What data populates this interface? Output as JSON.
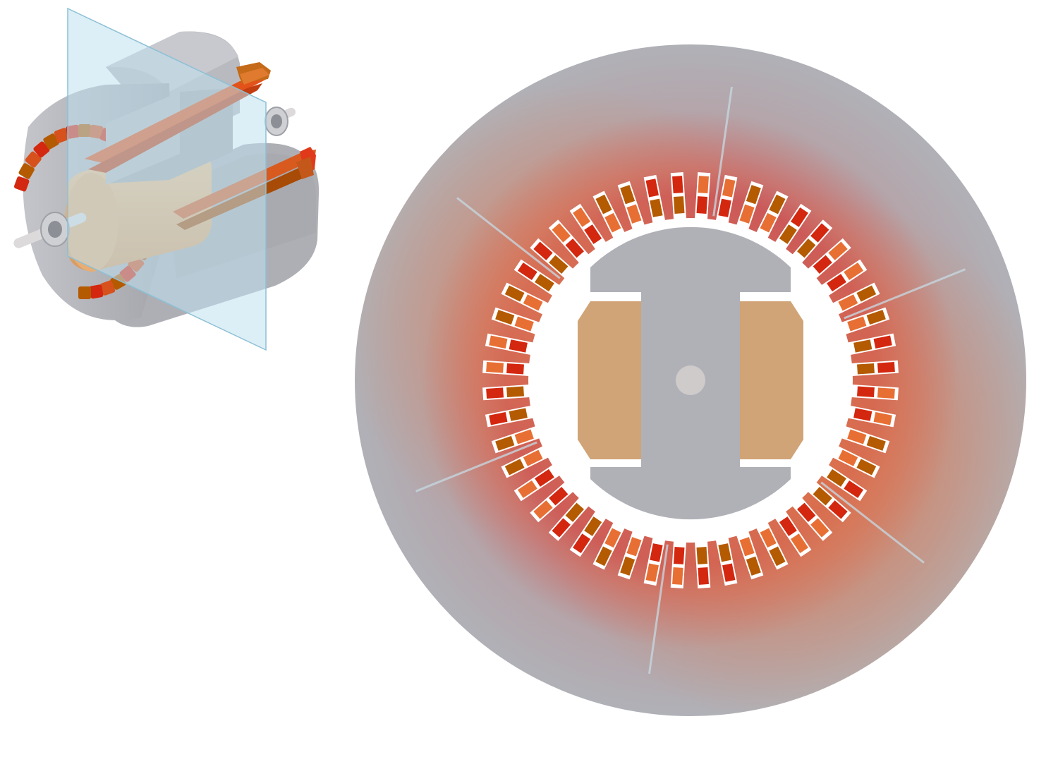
{
  "figure": {
    "views": [
      "isometric-3d-cutaway",
      "axial-cross-section"
    ],
    "stator_slot_count": 48,
    "stator_segment_count": 6,
    "rotor_pole_count": 2,
    "colors": {
      "background": "#ffffff",
      "stator_steel": "#b0b1b7",
      "stator_heat_core": "#c9555a",
      "stator_heat_mid": "#d9784f",
      "rotor_steel": "#b0b1b7",
      "rotor_winding": "#d0a476",
      "shaft": "#cfcbcb",
      "winding_phase_a": "#d4270f",
      "winding_phase_b": "#e86f34",
      "winding_phase_c": "#b45a00",
      "section_plane": "#bfe0ee",
      "segment_joint": "#c6d6df"
    }
  }
}
